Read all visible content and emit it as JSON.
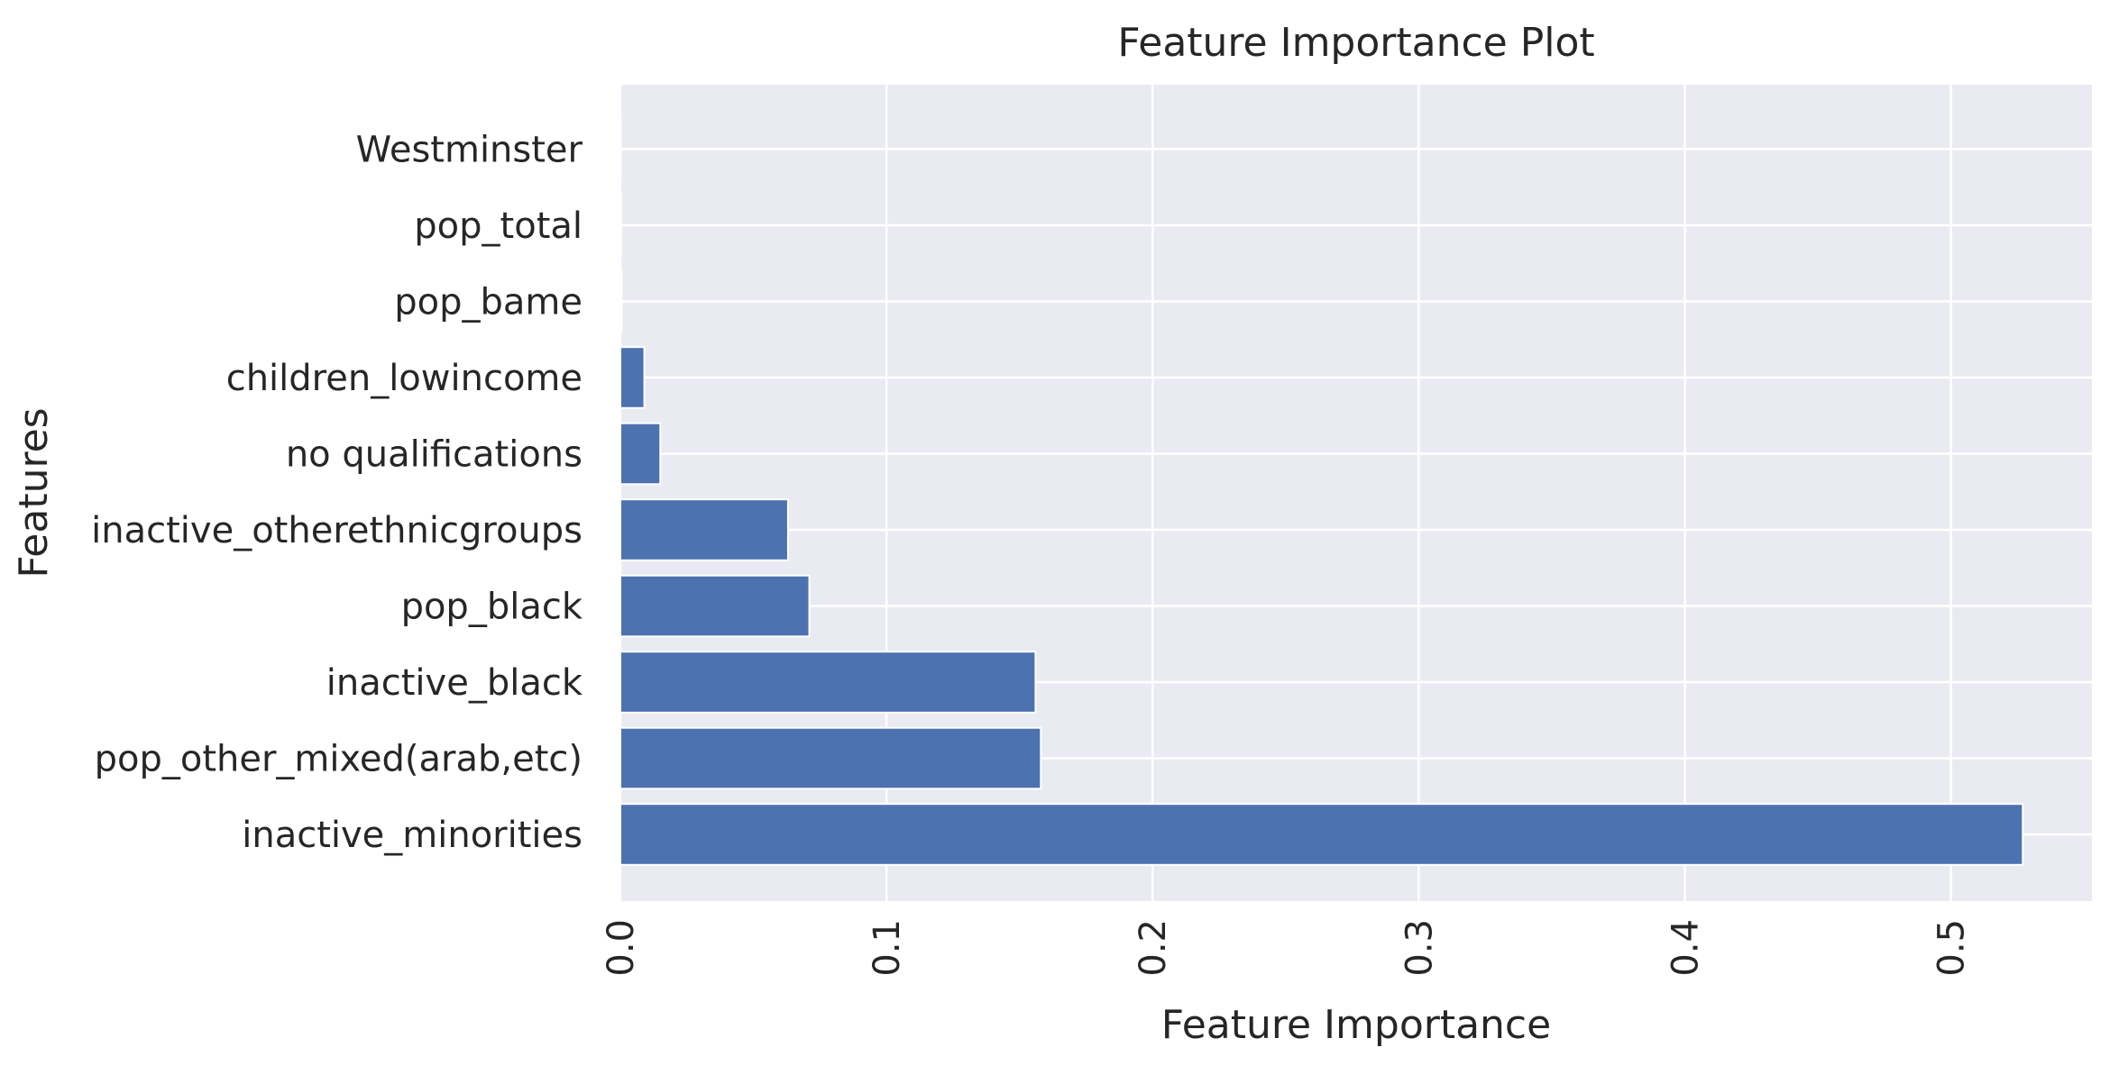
{
  "chart_data": {
    "type": "bar",
    "orientation": "horizontal",
    "title": "Feature Importance Plot",
    "xlabel": "Feature Importance",
    "ylabel": "Features",
    "categories": [
      "inactive_minorities",
      "pop_other_mixed(arab,etc)",
      "inactive_black",
      "pop_black",
      "inactive_otherethnicgroups",
      "no qualifications",
      "children_lowincome",
      "pop_bame",
      "pop_total",
      "Westminster"
    ],
    "values": [
      0.527,
      0.158,
      0.156,
      0.071,
      0.063,
      0.015,
      0.009,
      0.0005,
      0.0003,
      0.0001
    ],
    "xlim": [
      0,
      0.553
    ],
    "xticks": [
      0.0,
      0.1,
      0.2,
      0.3,
      0.4,
      0.5
    ],
    "xtick_labels": [
      "0.0",
      "0.1",
      "0.2",
      "0.3",
      "0.4",
      "0.5"
    ],
    "xtick_rotation": 90,
    "grid": true,
    "colors": {
      "bar": "#4c72b0",
      "background": "#eaeaf2",
      "grid": "#ffffff",
      "text": "#262626"
    }
  }
}
